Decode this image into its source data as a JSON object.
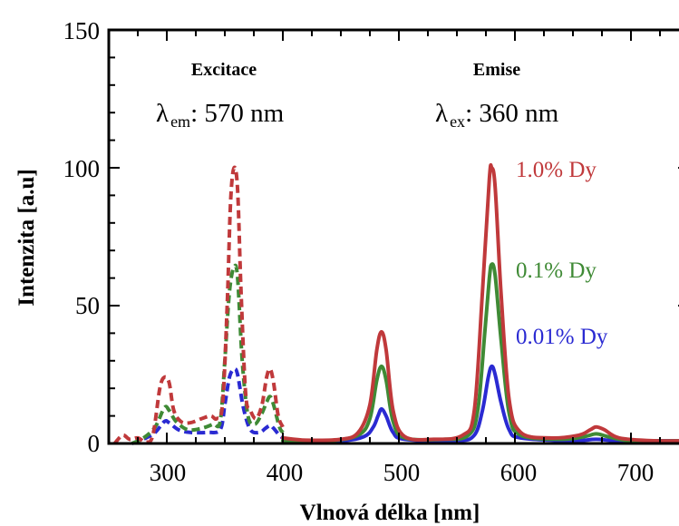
{
  "chart_data": {
    "type": "line",
    "xlabel": "Vlnová délka [nm]",
    "ylabel": "Intenzita [a.u]",
    "xlim": [
      250,
      750
    ],
    "ylim": [
      0,
      150
    ],
    "xticks": [
      "300",
      "400",
      "500",
      "600",
      "700"
    ],
    "yticks": [
      "0",
      "50",
      "100",
      "150"
    ],
    "grid": false,
    "panels": [
      {
        "title": "Excitace",
        "param_symbol": "λ",
        "param_sub": "em",
        "param_value": ": 570 nm",
        "line_style": "dashed"
      },
      {
        "title": "Emise",
        "param_symbol": "λ",
        "param_sub": "ex",
        "param_value": ": 360 nm",
        "line_style": "solid"
      }
    ],
    "series": [
      {
        "name": "1.0% Dy",
        "color": "#c0393b",
        "excitation": [
          [
            255,
            0
          ],
          [
            262,
            3
          ],
          [
            268,
            1.5
          ],
          [
            275,
            2
          ],
          [
            282,
            0.5
          ],
          [
            288,
            3
          ],
          [
            294,
            20
          ],
          [
            298,
            24
          ],
          [
            302,
            22
          ],
          [
            306,
            12
          ],
          [
            312,
            8
          ],
          [
            320,
            7.5
          ],
          [
            330,
            9
          ],
          [
            338,
            10
          ],
          [
            343,
            9
          ],
          [
            348,
            14
          ],
          [
            352,
            50
          ],
          [
            355,
            88
          ],
          [
            358,
            100
          ],
          [
            361,
            92
          ],
          [
            364,
            55
          ],
          [
            368,
            18
          ],
          [
            372,
            12
          ],
          [
            377,
            9
          ],
          [
            382,
            14
          ],
          [
            386,
            24
          ],
          [
            389,
            27
          ],
          [
            392,
            22
          ],
          [
            396,
            10
          ],
          [
            400,
            6
          ]
        ],
        "emission": [
          [
            400,
            2
          ],
          [
            420,
            1.2
          ],
          [
            450,
            1.5
          ],
          [
            465,
            4
          ],
          [
            475,
            14
          ],
          [
            481,
            34
          ],
          [
            485,
            40.5
          ],
          [
            489,
            34
          ],
          [
            495,
            12
          ],
          [
            505,
            2.5
          ],
          [
            530,
            1.5
          ],
          [
            555,
            3
          ],
          [
            565,
            12
          ],
          [
            572,
            55
          ],
          [
            578,
            96
          ],
          [
            580,
            100
          ],
          [
            583,
            93
          ],
          [
            588,
            55
          ],
          [
            595,
            16
          ],
          [
            605,
            4
          ],
          [
            630,
            2
          ],
          [
            655,
            3
          ],
          [
            665,
            5
          ],
          [
            670,
            6
          ],
          [
            677,
            5
          ],
          [
            690,
            2
          ],
          [
            720,
            1
          ],
          [
            750,
            1
          ]
        ]
      },
      {
        "name": "0.1% Dy",
        "color": "#3f8a35",
        "excitation": [
          [
            270,
            0
          ],
          [
            280,
            2
          ],
          [
            290,
            6
          ],
          [
            298,
            13
          ],
          [
            302,
            12
          ],
          [
            308,
            8
          ],
          [
            318,
            5
          ],
          [
            330,
            5.5
          ],
          [
            340,
            7
          ],
          [
            346,
            8
          ],
          [
            350,
            30
          ],
          [
            354,
            55
          ],
          [
            358,
            64
          ],
          [
            361,
            60
          ],
          [
            365,
            30
          ],
          [
            370,
            10
          ],
          [
            376,
            7
          ],
          [
            382,
            11
          ],
          [
            386,
            15
          ],
          [
            389,
            17
          ],
          [
            392,
            14
          ],
          [
            397,
            6
          ],
          [
            400,
            4
          ]
        ],
        "emission": [
          [
            400,
            1
          ],
          [
            440,
            1
          ],
          [
            465,
            3
          ],
          [
            475,
            9
          ],
          [
            481,
            23
          ],
          [
            485,
            28
          ],
          [
            489,
            23
          ],
          [
            495,
            8
          ],
          [
            505,
            2
          ],
          [
            540,
            1.5
          ],
          [
            560,
            3
          ],
          [
            568,
            12
          ],
          [
            574,
            40
          ],
          [
            578,
            60
          ],
          [
            580,
            65
          ],
          [
            583,
            61
          ],
          [
            588,
            38
          ],
          [
            595,
            11
          ],
          [
            605,
            3
          ],
          [
            640,
            1.5
          ],
          [
            660,
            2.5
          ],
          [
            670,
            3.5
          ],
          [
            680,
            2.5
          ],
          [
            700,
            1
          ],
          [
            750,
            1
          ]
        ]
      },
      {
        "name": "0.01% Dy",
        "color": "#2a2ad2",
        "excitation": [
          [
            270,
            0
          ],
          [
            282,
            2
          ],
          [
            290,
            4
          ],
          [
            298,
            8
          ],
          [
            302,
            7.5
          ],
          [
            310,
            5
          ],
          [
            320,
            4
          ],
          [
            335,
            4
          ],
          [
            346,
            5
          ],
          [
            350,
            14
          ],
          [
            354,
            24
          ],
          [
            358,
            27
          ],
          [
            361,
            25
          ],
          [
            366,
            13
          ],
          [
            372,
            5
          ],
          [
            380,
            4
          ],
          [
            385,
            5.5
          ],
          [
            389,
            6.5
          ],
          [
            392,
            5.5
          ],
          [
            397,
            3
          ],
          [
            400,
            2
          ]
        ],
        "emission": [
          [
            400,
            1
          ],
          [
            450,
            1
          ],
          [
            470,
            2.5
          ],
          [
            478,
            6
          ],
          [
            482,
            10
          ],
          [
            485,
            12.5
          ],
          [
            489,
            10
          ],
          [
            495,
            4
          ],
          [
            505,
            1.5
          ],
          [
            550,
            1
          ],
          [
            565,
            3
          ],
          [
            572,
            12
          ],
          [
            577,
            24
          ],
          [
            580,
            28
          ],
          [
            583,
            25
          ],
          [
            588,
            15
          ],
          [
            595,
            5
          ],
          [
            605,
            2
          ],
          [
            650,
            1
          ],
          [
            670,
            1.5
          ],
          [
            690,
            1
          ],
          [
            750,
            1
          ]
        ]
      }
    ]
  }
}
